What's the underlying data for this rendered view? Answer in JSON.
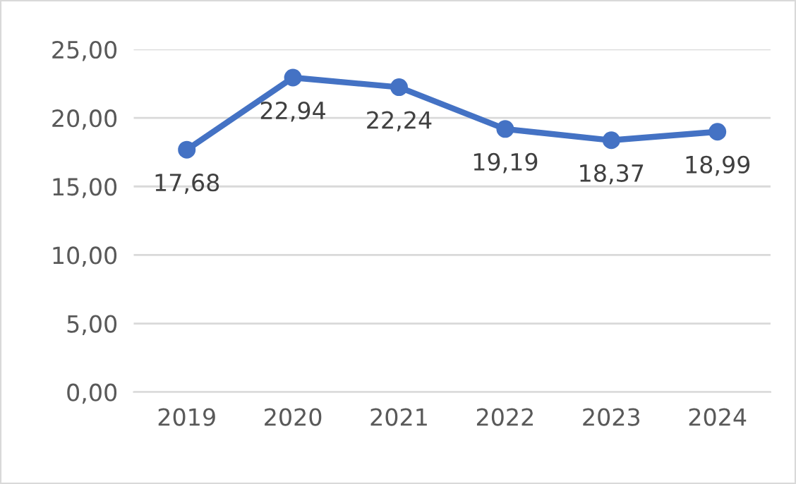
{
  "chart_data": {
    "type": "line",
    "categories": [
      "2019",
      "2020",
      "2021",
      "2022",
      "2023",
      "2024"
    ],
    "series": [
      {
        "color": "#4472c4",
        "values": [
          17.68,
          22.94,
          22.24,
          19.19,
          18.37,
          18.99
        ],
        "value_labels": [
          "17,68",
          "22,94",
          "22,24",
          "19,19",
          "18,37",
          "18,99"
        ]
      }
    ],
    "ylim": [
      0,
      25
    ],
    "yticks": [
      {
        "value": 0,
        "label": "0,00"
      },
      {
        "value": 5,
        "label": "5,00"
      },
      {
        "value": 10,
        "label": "10,00"
      },
      {
        "value": 15,
        "label": "15,00"
      },
      {
        "value": 20,
        "label": "20,00"
      },
      {
        "value": 25,
        "label": "25,00"
      }
    ],
    "grid": "y",
    "marker": "circle",
    "line_style": "solid"
  }
}
